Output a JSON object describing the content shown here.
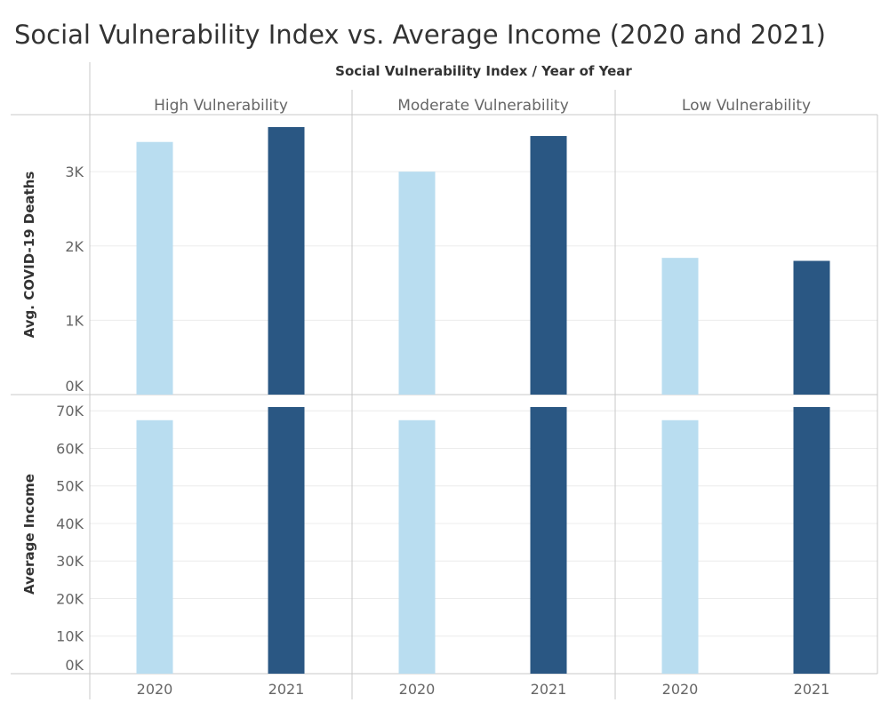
{
  "chart_title": "Social Vulnerability Index vs. Average Income (2020 and 2021)",
  "chart_data": {
    "type": "bar",
    "column_header": "Social Vulnerability Index  /  Year of Year",
    "groups": [
      "High Vulnerability",
      "Moderate Vulnerability",
      "Low Vulnerability"
    ],
    "categories": [
      "2020",
      "2021"
    ],
    "colors": {
      "2020": "#b9ddf0",
      "2021": "#2a5783"
    },
    "grid": true,
    "panels": [
      {
        "ylabel": "Avg. COVID-19 Deaths",
        "ylim": [
          0,
          3600
        ],
        "ticks": [
          0,
          1000,
          2000,
          3000
        ],
        "tick_labels": [
          "0K",
          "1K",
          "2K",
          "3K"
        ],
        "series": [
          {
            "group": "High Vulnerability",
            "values": [
              3400,
              3600
            ]
          },
          {
            "group": "Moderate Vulnerability",
            "values": [
              3000,
              3480
            ]
          },
          {
            "group": "Low Vulnerability",
            "values": [
              1840,
              1800
            ]
          }
        ]
      },
      {
        "ylabel": "Average Income",
        "ylim": [
          0,
          71000
        ],
        "ticks": [
          0,
          10000,
          20000,
          30000,
          40000,
          50000,
          60000,
          70000
        ],
        "tick_labels": [
          "0K",
          "10K",
          "20K",
          "30K",
          "40K",
          "50K",
          "60K",
          "70K"
        ],
        "series": [
          {
            "group": "High Vulnerability",
            "values": [
              67500,
              71000
            ]
          },
          {
            "group": "Moderate Vulnerability",
            "values": [
              67500,
              71000
            ]
          },
          {
            "group": "Low Vulnerability",
            "values": [
              67500,
              71000
            ]
          }
        ]
      }
    ]
  }
}
